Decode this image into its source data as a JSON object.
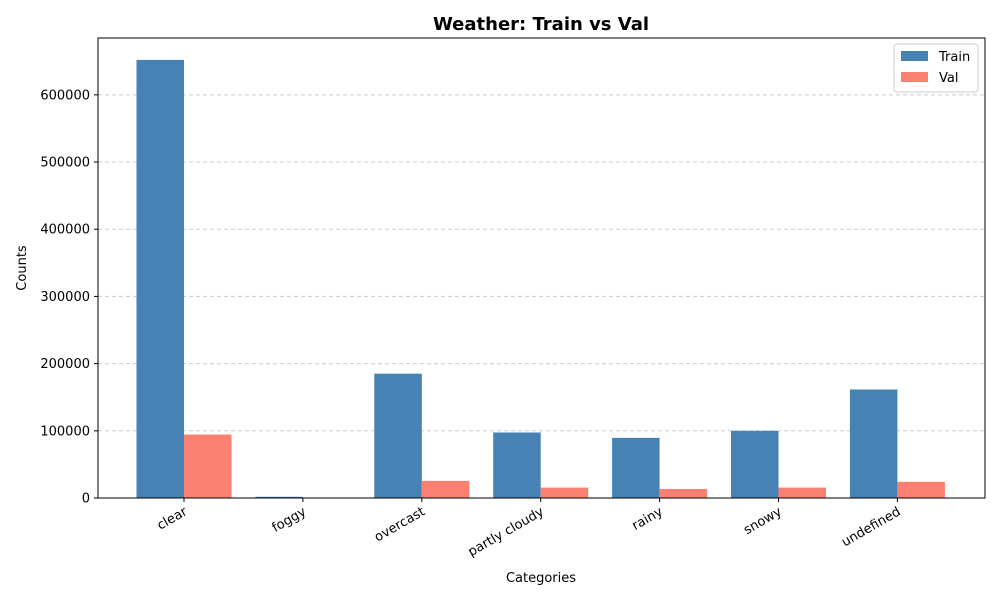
{
  "chart_data": {
    "type": "bar",
    "title": "Weather: Train vs Val",
    "xlabel": "Categories",
    "ylabel": "Counts",
    "categories": [
      "clear",
      "foggy",
      "overcast",
      "partly cloudy",
      "rainy",
      "snowy",
      "undefined"
    ],
    "series": [
      {
        "name": "Train",
        "color": "#4682b4",
        "values": [
          652000,
          1800,
          185000,
          97500,
          89500,
          100000,
          161500
        ]
      },
      {
        "name": "Val",
        "color": "#fa8072",
        "values": [
          94500,
          0,
          25500,
          15500,
          13500,
          15500,
          24000
        ]
      }
    ],
    "ylim": [
      0,
      684600
    ],
    "yticks": [
      0,
      100000,
      200000,
      300000,
      400000,
      500000,
      600000
    ],
    "grid": "y-dashed",
    "legend_position": "top-right"
  }
}
